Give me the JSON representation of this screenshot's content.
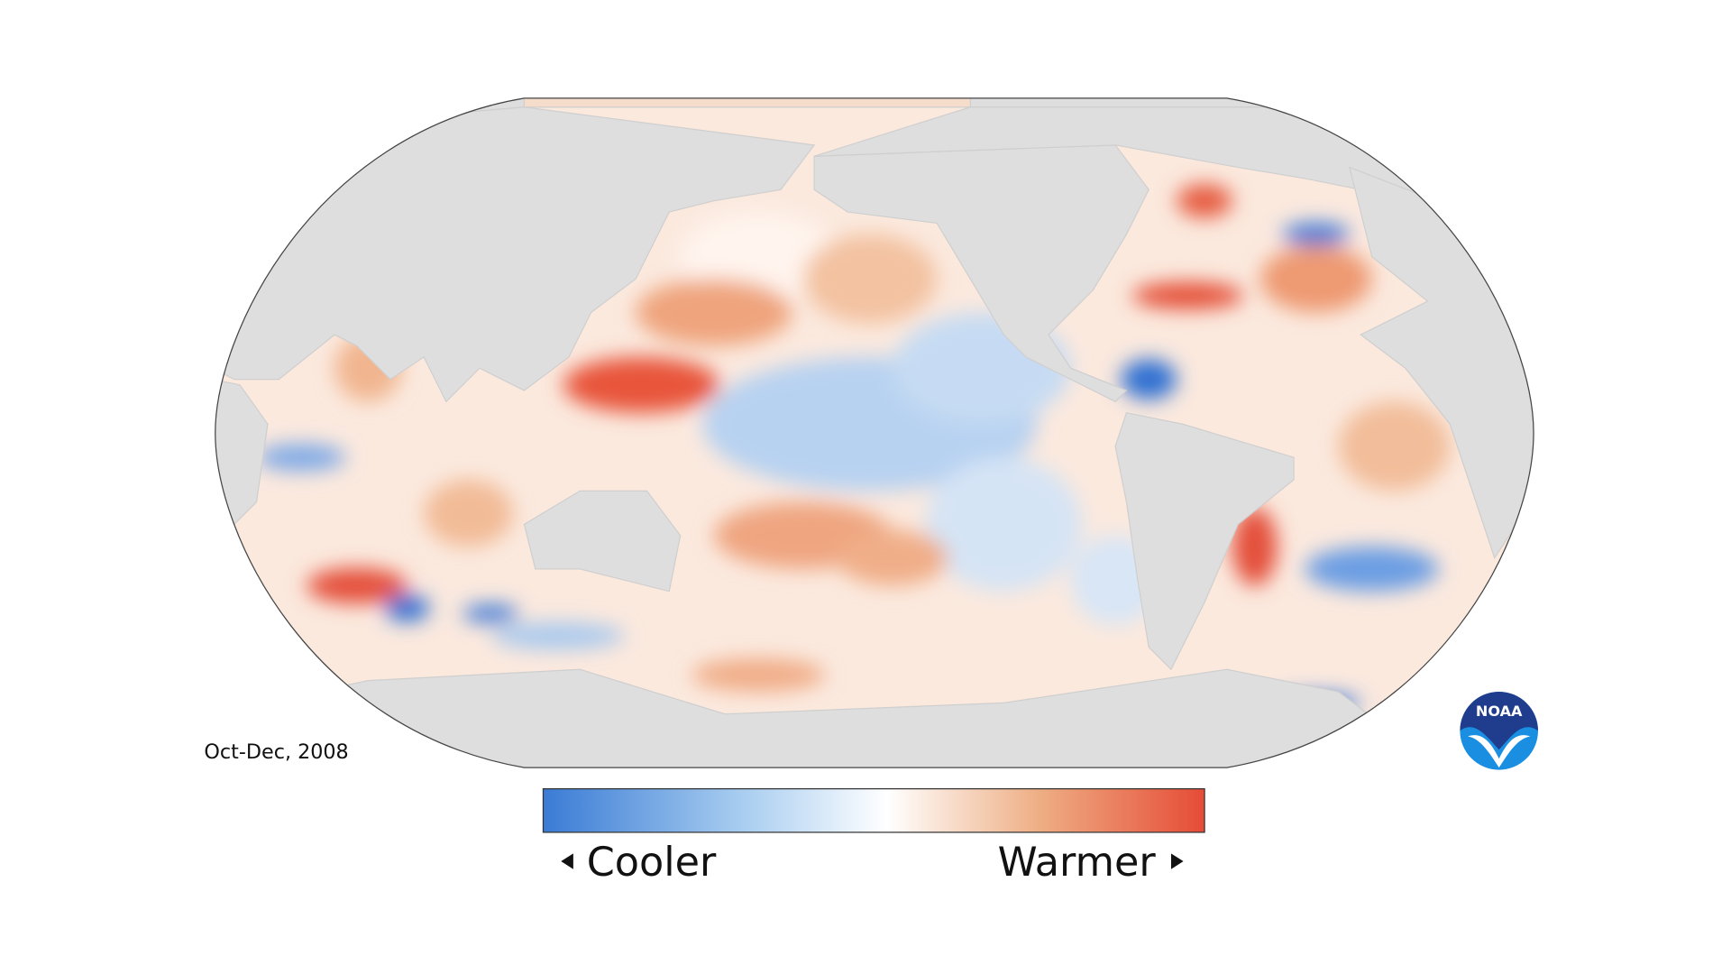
{
  "map": {
    "date_label": "Oct-Dec, 2008",
    "legend": {
      "low_label": "Cooler",
      "high_label": "Warmer"
    },
    "logo": "NOAA"
  }
}
